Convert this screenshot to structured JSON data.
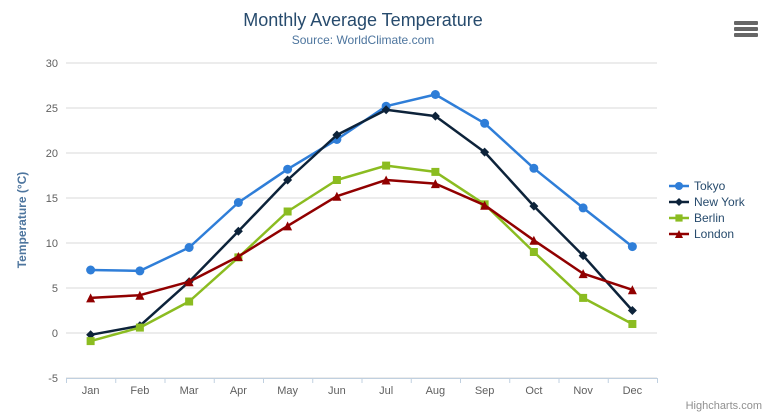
{
  "chart_data": {
    "type": "line",
    "title": "Monthly Average Temperature",
    "subtitle": "Source: WorldClimate.com",
    "xlabel": "",
    "ylabel": "Temperature (°C)",
    "categories": [
      "Jan",
      "Feb",
      "Mar",
      "Apr",
      "May",
      "Jun",
      "Jul",
      "Aug",
      "Sep",
      "Oct",
      "Nov",
      "Dec"
    ],
    "ylim": [
      -5,
      30
    ],
    "ytick_step": 5,
    "yticks": [
      -5,
      0,
      5,
      10,
      15,
      20,
      25,
      30
    ],
    "grid": true,
    "legend_position": "right",
    "series": [
      {
        "name": "Tokyo",
        "color": "#2f7ed8",
        "marker": "circle",
        "values": [
          7.0,
          6.9,
          9.5,
          14.5,
          18.2,
          21.5,
          25.2,
          26.5,
          23.3,
          18.3,
          13.9,
          9.6
        ]
      },
      {
        "name": "New York",
        "color": "#0d233a",
        "marker": "diamond",
        "values": [
          -0.2,
          0.8,
          5.7,
          11.3,
          17.0,
          22.0,
          24.8,
          24.1,
          20.1,
          14.1,
          8.6,
          2.5
        ]
      },
      {
        "name": "Berlin",
        "color": "#8bbc21",
        "marker": "square",
        "values": [
          -0.9,
          0.6,
          3.5,
          8.4,
          13.5,
          17.0,
          18.6,
          17.9,
          14.3,
          9.0,
          3.9,
          1.0
        ]
      },
      {
        "name": "London",
        "color": "#910000",
        "marker": "triangle",
        "values": [
          3.9,
          4.2,
          5.7,
          8.5,
          11.9,
          15.2,
          17.0,
          16.6,
          14.2,
          10.3,
          6.6,
          4.8
        ]
      }
    ],
    "style": {
      "title_color": "#274b6d",
      "subtitle_color": "#4d759e",
      "axis_title_color": "#4d759e",
      "axis_label_color": "#606060",
      "grid_color": "#d8d8d8",
      "axis_line_color": "#c0d0e0",
      "legend_text_color": "#274b6d"
    }
  },
  "toolbar": {
    "context_menu_icon": "hamburger"
  },
  "credits": {
    "label": "Highcharts.com"
  }
}
